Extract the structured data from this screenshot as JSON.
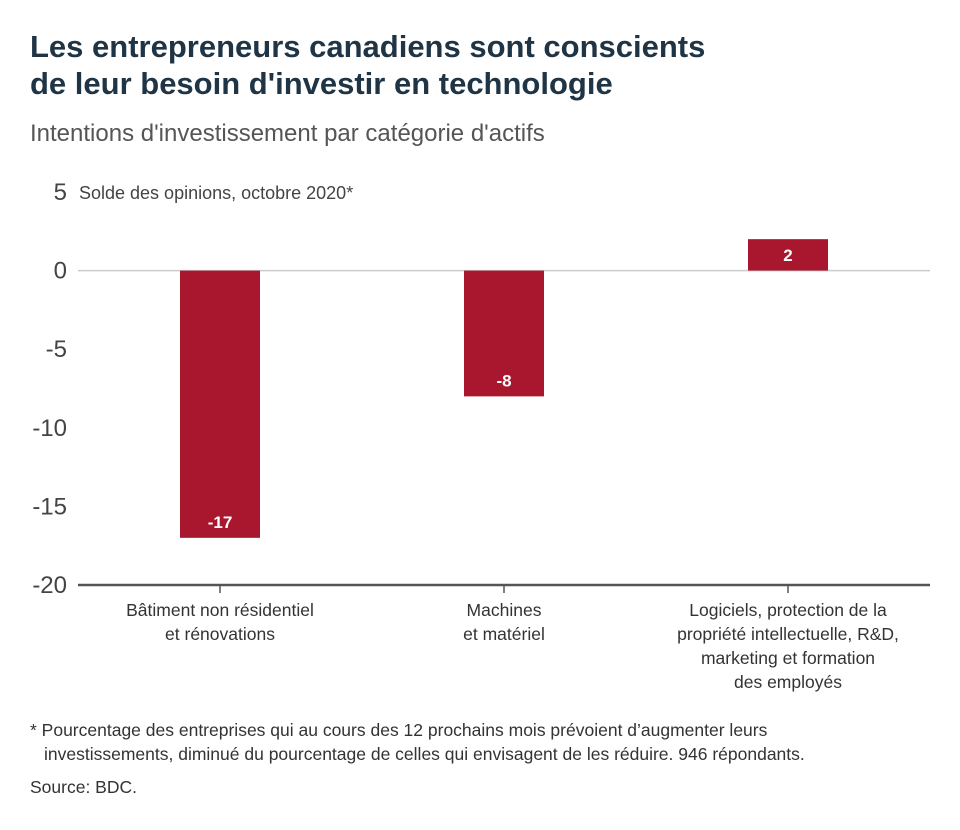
{
  "title_line1": "Les entrepreneurs canadiens sont conscients",
  "title_line2": "de leur besoin d'investir en technologie",
  "subtitle": "Intentions d'investissement par catégorie d'actifs",
  "footnote_line1": "* Pourcentage des entreprises qui au cours des 12 prochains mois prévoient d’augmenter leurs",
  "footnote_line2": "investissements, diminué du pourcentage de celles qui envisagent de les réduire. 946 répondants.",
  "source": "Source: BDC.",
  "colors": {
    "bar": "#a8172d",
    "grid": "#cccccc",
    "axis": "#555555",
    "title": "#1f3445"
  },
  "chart_data": {
    "type": "bar",
    "title": "Les entrepreneurs canadiens sont conscients de leur besoin d'investir en technologie",
    "subtitle": "Intentions d'investissement par catégorie d'actifs",
    "ylabel": "Solde des opinions, octobre 2020*",
    "xlabel": "",
    "ylim": [
      -20,
      5
    ],
    "yticks": [
      5,
      0,
      -5,
      -10,
      -15,
      -20
    ],
    "grid": false,
    "categories": [
      [
        "Bâtiment non résidentiel",
        "et rénovations"
      ],
      [
        "Machines",
        "et matériel"
      ],
      [
        "Logiciels, protection de la",
        "propriété intellectuelle, R&D,",
        "marketing et formation",
        "des employés"
      ]
    ],
    "values": [
      -17,
      -8,
      2
    ],
    "data_labels": [
      "-17",
      "-8",
      "2"
    ]
  }
}
